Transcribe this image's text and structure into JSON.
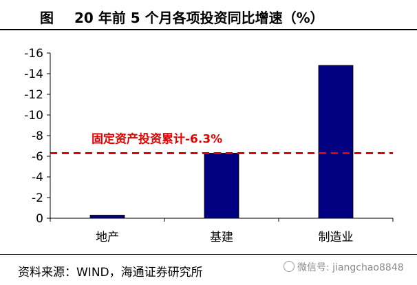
{
  "header": {
    "figure_label": "图",
    "title": "20 年前 5 个月各项投资同比增速（%）"
  },
  "chart_data": {
    "type": "bar",
    "categories": [
      "地产",
      "基建",
      "制造业"
    ],
    "values": [
      -0.3,
      -6.3,
      -14.8
    ],
    "ylim": [
      0,
      -16
    ],
    "yticks": [
      0,
      -2,
      -4,
      -6,
      -8,
      -10,
      -12,
      -14,
      -16
    ],
    "ytick_labels": [
      "0",
      "-2",
      "-4",
      "-6",
      "-8",
      "-10",
      "-12",
      "-14",
      "-16"
    ],
    "y_axis_inverted": true,
    "bar_color": "#000080",
    "reference_line": {
      "value": -6.3,
      "label": "固定资产投资累计-6.3%",
      "color": "#e60000",
      "style": "dashed"
    },
    "grid": false
  },
  "footer": {
    "source": "资料来源：WIND，海通证券研究所",
    "watermark": "微信号: jiangchao8848"
  }
}
